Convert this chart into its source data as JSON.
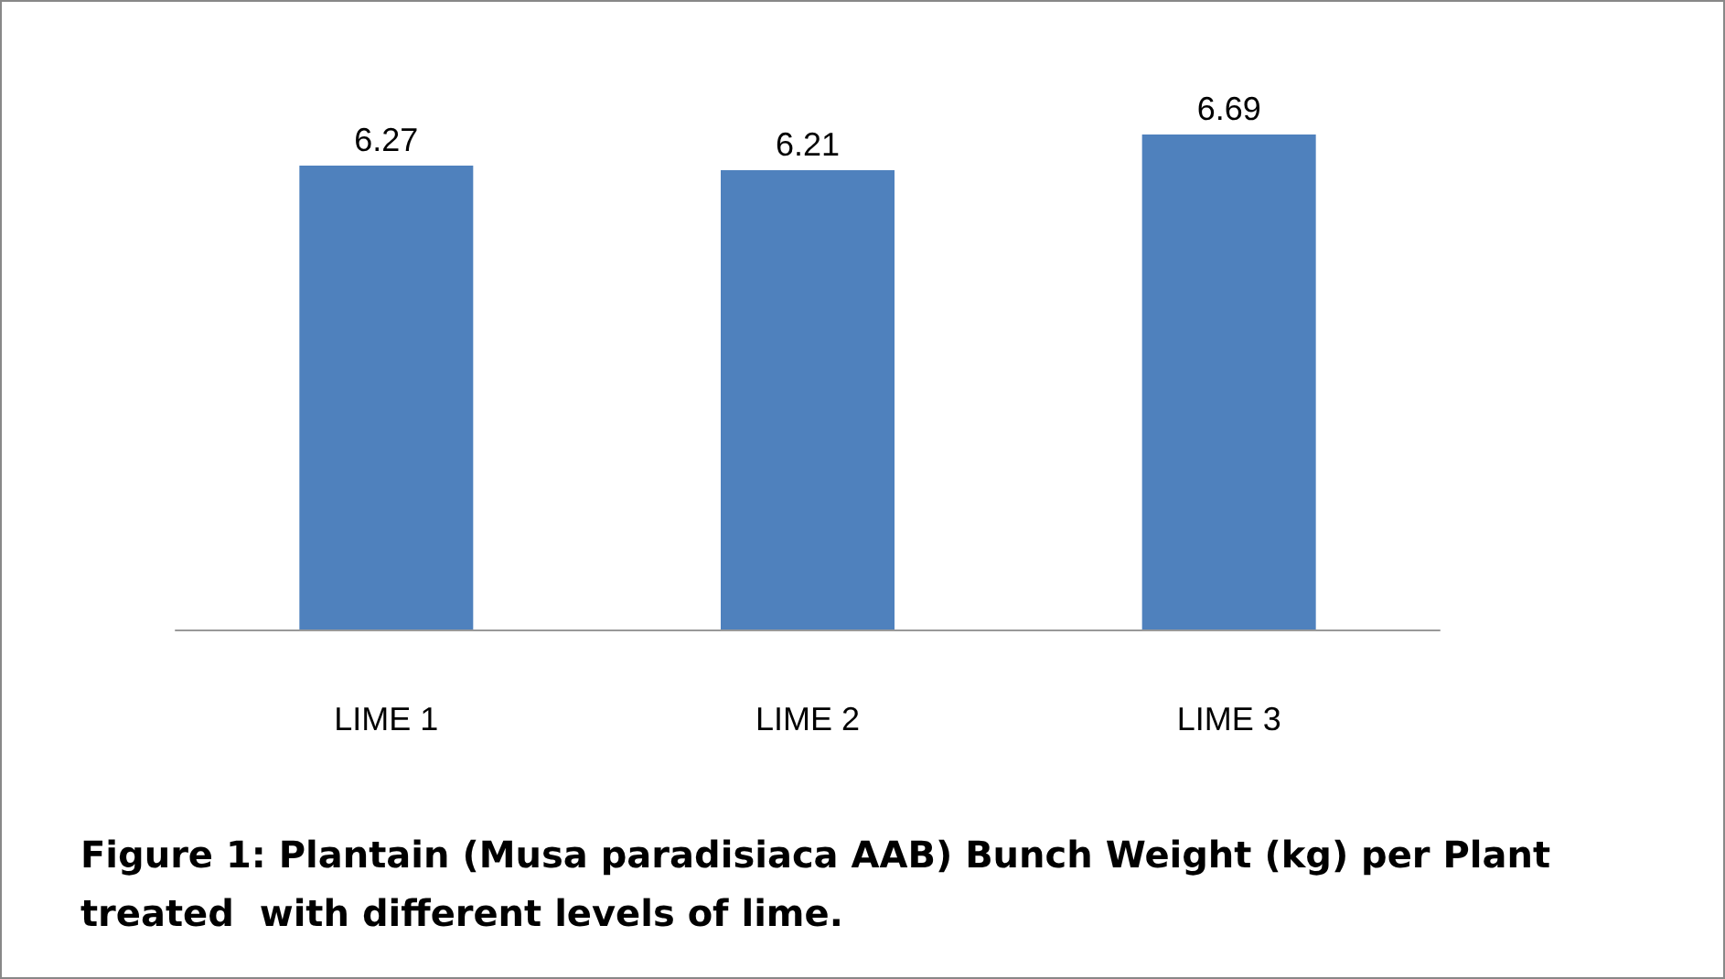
{
  "chart_data": {
    "type": "bar",
    "title": "Figure 1: Plantain (Musa paradisiaca AAB) Bunch Weight (kg) per Plant treated  with different levels of lime.",
    "categories": [
      "LIME 1",
      "LIME 2",
      "LIME 3"
    ],
    "values": [
      6.27,
      6.21,
      6.69
    ],
    "color": "#4f81bd",
    "data_labels": true
  }
}
